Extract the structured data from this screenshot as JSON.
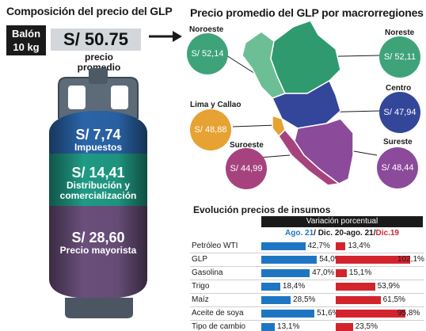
{
  "left_title": "Composición del precio del GLP",
  "right_title": "Precio promedio del GLP por macrorregiones",
  "balon": {
    "line1": "Balón",
    "line2": "10 kg"
  },
  "average_price": {
    "value": "S/ 50.75",
    "caption_line1": "precio",
    "caption_line2": "promedio"
  },
  "composition": [
    {
      "value": "S/ 7,74",
      "label": "Impuestos",
      "label2": "",
      "color": "#2a64a8"
    },
    {
      "value": "S/ 14,41",
      "label": "Distribución y",
      "label2": "comercialización",
      "color": "#1f9a84"
    },
    {
      "value": "S/ 28,60",
      "label": "Precio mayorista",
      "label2": "",
      "color": "#6a4f7b"
    }
  ],
  "regions": {
    "noroeste": {
      "name": "Noroeste",
      "price": "S/ 52,14",
      "color": "#3fa37a"
    },
    "noreste": {
      "name": "Noreste",
      "price": "S/ 52,11",
      "color": "#3fa37a"
    },
    "centro": {
      "name": "Centro",
      "price": "S/ 47,94",
      "color": "#34469a"
    },
    "lima_callao": {
      "name": "Lima y Callao",
      "price": "S/ 48,88",
      "color": "#e6a232"
    },
    "sureste": {
      "name": "Sureste",
      "price": "S/ 48,44",
      "color": "#8c4a9b"
    },
    "suroeste": {
      "name": "Suroeste",
      "price": "S/ 44,99",
      "color": "#a6437f"
    }
  },
  "inputs_table": {
    "title": "Evolución precios de insumos",
    "header": "Variación porcentual",
    "period_blue": "Ago. 21",
    "period_mid": "/ Dic. 20-ago. 21/",
    "period_red": "Dic.19"
  },
  "chart_data": {
    "type": "bar",
    "title": "Evolución precios de insumos",
    "ylabel": "Variación porcentual",
    "categories": [
      "Petróleo WTI",
      "GLP",
      "Gasolina",
      "Trigo",
      "Maíz",
      "Aceite de soya",
      "Tipo de cambio"
    ],
    "series": [
      {
        "name": "Ago. 21/ Dic. 20-ago. 21",
        "color": "#1e76c2",
        "values": [
          42.7,
          54.0,
          47.0,
          18.4,
          28.5,
          51.6,
          13.1
        ],
        "labels": [
          "42,7%",
          "54,0%",
          "47,0%",
          "18,4%",
          "28,5%",
          "51,6%",
          "13,1%"
        ]
      },
      {
        "name": "Dic.19",
        "color": "#d3242e",
        "values": [
          13.4,
          102.1,
          15.1,
          53.9,
          61.5,
          95.8,
          23.5
        ],
        "labels": [
          "13,4%",
          "102,1%",
          "15,1%",
          "53,9%",
          "61,5%",
          "95,8%",
          "23,5%"
        ]
      }
    ]
  }
}
